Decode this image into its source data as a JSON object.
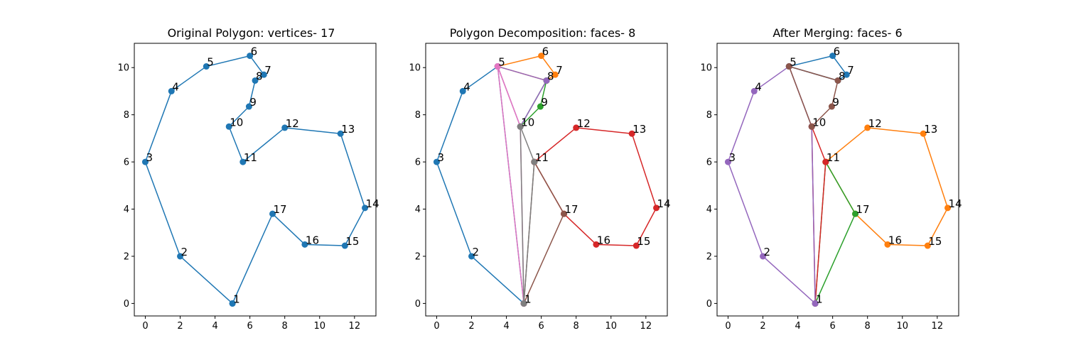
{
  "chart_data": [
    {
      "type": "line",
      "title": "Original Polygon: vertices- 17",
      "xlim": [
        -0.63,
        13.23
      ],
      "ylim": [
        -0.53,
        11.03
      ],
      "xticks": [
        0,
        2,
        4,
        6,
        8,
        10,
        12
      ],
      "yticks": [
        0,
        2,
        4,
        6,
        8,
        10
      ],
      "vertices": [
        {
          "label": "1",
          "x": 5.0,
          "y": 0.0
        },
        {
          "label": "2",
          "x": 2.0,
          "y": 2.0
        },
        {
          "label": "3",
          "x": 0.0,
          "y": 6.0
        },
        {
          "label": "4",
          "x": 1.5,
          "y": 9.0
        },
        {
          "label": "5",
          "x": 3.5,
          "y": 10.05
        },
        {
          "label": "6",
          "x": 6.0,
          "y": 10.5
        },
        {
          "label": "7",
          "x": 6.8,
          "y": 9.7
        },
        {
          "label": "8",
          "x": 6.3,
          "y": 9.45
        },
        {
          "label": "9",
          "x": 5.95,
          "y": 8.35
        },
        {
          "label": "10",
          "x": 4.8,
          "y": 7.5
        },
        {
          "label": "11",
          "x": 5.6,
          "y": 6.0
        },
        {
          "label": "12",
          "x": 8.0,
          "y": 7.45
        },
        {
          "label": "13",
          "x": 11.2,
          "y": 7.2
        },
        {
          "label": "14",
          "x": 12.6,
          "y": 4.05
        },
        {
          "label": "15",
          "x": 11.45,
          "y": 2.45
        },
        {
          "label": "16",
          "x": 9.15,
          "y": 2.5
        },
        {
          "label": "17",
          "x": 7.3,
          "y": 3.8
        }
      ],
      "series": [
        {
          "color": "#1f77b4",
          "points": [
            [
              5.0,
              0.0
            ],
            [
              2.0,
              2.0
            ],
            [
              0.0,
              6.0
            ],
            [
              1.5,
              9.0
            ],
            [
              3.5,
              10.05
            ],
            [
              6.0,
              10.5
            ],
            [
              6.8,
              9.7
            ],
            [
              6.3,
              9.45
            ],
            [
              5.95,
              8.35
            ],
            [
              4.8,
              7.5
            ],
            [
              5.6,
              6.0
            ],
            [
              8.0,
              7.45
            ],
            [
              11.2,
              7.2
            ],
            [
              12.6,
              4.05
            ],
            [
              11.45,
              2.45
            ],
            [
              9.15,
              2.5
            ],
            [
              7.3,
              3.8
            ],
            [
              5.0,
              0.0
            ]
          ]
        }
      ]
    },
    {
      "type": "line",
      "title": "Polygon Decomposition: faces- 8",
      "xlim": [
        -0.63,
        13.23
      ],
      "ylim": [
        -0.53,
        11.03
      ],
      "xticks": [
        0,
        2,
        4,
        6,
        8,
        10,
        12
      ],
      "yticks": [
        0,
        2,
        4,
        6,
        8,
        10
      ],
      "vertices": [
        {
          "label": "1",
          "x": 5.0,
          "y": 0.0
        },
        {
          "label": "2",
          "x": 2.0,
          "y": 2.0
        },
        {
          "label": "3",
          "x": 0.0,
          "y": 6.0
        },
        {
          "label": "4",
          "x": 1.5,
          "y": 9.0
        },
        {
          "label": "5",
          "x": 3.5,
          "y": 10.05
        },
        {
          "label": "6",
          "x": 6.0,
          "y": 10.5
        },
        {
          "label": "7",
          "x": 6.8,
          "y": 9.7
        },
        {
          "label": "8",
          "x": 6.3,
          "y": 9.45
        },
        {
          "label": "9",
          "x": 5.95,
          "y": 8.35
        },
        {
          "label": "10",
          "x": 4.8,
          "y": 7.5
        },
        {
          "label": "11",
          "x": 5.6,
          "y": 6.0
        },
        {
          "label": "12",
          "x": 8.0,
          "y": 7.45
        },
        {
          "label": "13",
          "x": 11.2,
          "y": 7.2
        },
        {
          "label": "14",
          "x": 12.6,
          "y": 4.05
        },
        {
          "label": "15",
          "x": 11.45,
          "y": 2.45
        },
        {
          "label": "16",
          "x": 9.15,
          "y": 2.5
        },
        {
          "label": "17",
          "x": 7.3,
          "y": 3.8
        }
      ],
      "series": [
        {
          "color": "#1f77b4",
          "points": [
            [
              5.0,
              0.0
            ],
            [
              2.0,
              2.0
            ],
            [
              0.0,
              6.0
            ],
            [
              1.5,
              9.0
            ],
            [
              3.5,
              10.05
            ],
            [
              5.0,
              0.0
            ]
          ]
        },
        {
          "color": "#ff7f0e",
          "points": [
            [
              3.5,
              10.05
            ],
            [
              6.0,
              10.5
            ],
            [
              6.8,
              9.7
            ],
            [
              6.3,
              9.45
            ],
            [
              3.5,
              10.05
            ]
          ]
        },
        {
          "color": "#2ca02c",
          "points": [
            [
              6.3,
              9.45
            ],
            [
              5.95,
              8.35
            ],
            [
              4.8,
              7.5
            ],
            [
              6.3,
              9.45
            ]
          ]
        },
        {
          "color": "#d62728",
          "points": [
            [
              5.6,
              6.0
            ],
            [
              8.0,
              7.45
            ],
            [
              11.2,
              7.2
            ],
            [
              12.6,
              4.05
            ],
            [
              11.45,
              2.45
            ],
            [
              9.15,
              2.5
            ],
            [
              7.3,
              3.8
            ],
            [
              5.6,
              6.0
            ]
          ]
        },
        {
          "color": "#9467bd",
          "points": [
            [
              3.5,
              10.05
            ],
            [
              6.3,
              9.45
            ],
            [
              4.8,
              7.5
            ],
            [
              3.5,
              10.05
            ]
          ]
        },
        {
          "color": "#8c564b",
          "points": [
            [
              5.0,
              0.0
            ],
            [
              5.6,
              6.0
            ],
            [
              7.3,
              3.8
            ],
            [
              5.0,
              0.0
            ]
          ]
        },
        {
          "color": "#e377c2",
          "points": [
            [
              3.5,
              10.05
            ],
            [
              4.8,
              7.5
            ],
            [
              5.0,
              0.0
            ],
            [
              3.5,
              10.05
            ]
          ]
        },
        {
          "color": "#7f7f7f",
          "points": [
            [
              4.8,
              7.5
            ],
            [
              5.6,
              6.0
            ],
            [
              5.0,
              0.0
            ],
            [
              4.8,
              7.5
            ]
          ]
        }
      ]
    },
    {
      "type": "line",
      "title": "After Merging: faces- 6",
      "xlim": [
        -0.63,
        13.23
      ],
      "ylim": [
        -0.53,
        11.03
      ],
      "xticks": [
        0,
        2,
        4,
        6,
        8,
        10,
        12
      ],
      "yticks": [
        0,
        2,
        4,
        6,
        8,
        10
      ],
      "vertices": [
        {
          "label": "1",
          "x": 5.0,
          "y": 0.0
        },
        {
          "label": "2",
          "x": 2.0,
          "y": 2.0
        },
        {
          "label": "3",
          "x": 0.0,
          "y": 6.0
        },
        {
          "label": "4",
          "x": 1.5,
          "y": 9.0
        },
        {
          "label": "5",
          "x": 3.5,
          "y": 10.05
        },
        {
          "label": "6",
          "x": 6.0,
          "y": 10.5
        },
        {
          "label": "7",
          "x": 6.8,
          "y": 9.7
        },
        {
          "label": "8",
          "x": 6.3,
          "y": 9.45
        },
        {
          "label": "9",
          "x": 5.95,
          "y": 8.35
        },
        {
          "label": "10",
          "x": 4.8,
          "y": 7.5
        },
        {
          "label": "11",
          "x": 5.6,
          "y": 6.0
        },
        {
          "label": "12",
          "x": 8.0,
          "y": 7.45
        },
        {
          "label": "13",
          "x": 11.2,
          "y": 7.2
        },
        {
          "label": "14",
          "x": 12.6,
          "y": 4.05
        },
        {
          "label": "15",
          "x": 11.45,
          "y": 2.45
        },
        {
          "label": "16",
          "x": 9.15,
          "y": 2.5
        },
        {
          "label": "17",
          "x": 7.3,
          "y": 3.8
        }
      ],
      "series": [
        {
          "color": "#1f77b4",
          "points": [
            [
              3.5,
              10.05
            ],
            [
              6.0,
              10.5
            ],
            [
              6.8,
              9.7
            ],
            [
              6.3,
              9.45
            ],
            [
              3.5,
              10.05
            ]
          ]
        },
        {
          "color": "#ff7f0e",
          "points": [
            [
              5.6,
              6.0
            ],
            [
              8.0,
              7.45
            ],
            [
              11.2,
              7.2
            ],
            [
              12.6,
              4.05
            ],
            [
              11.45,
              2.45
            ],
            [
              9.15,
              2.5
            ],
            [
              7.3,
              3.8
            ],
            [
              5.6,
              6.0
            ]
          ]
        },
        {
          "color": "#2ca02c",
          "points": [
            [
              5.0,
              0.0
            ],
            [
              5.6,
              6.0
            ],
            [
              7.3,
              3.8
            ],
            [
              5.0,
              0.0
            ]
          ]
        },
        {
          "color": "#d62728",
          "points": [
            [
              4.8,
              7.5
            ],
            [
              5.6,
              6.0
            ],
            [
              5.0,
              0.0
            ],
            [
              4.8,
              7.5
            ]
          ]
        },
        {
          "color": "#9467bd",
          "points": [
            [
              5.0,
              0.0
            ],
            [
              2.0,
              2.0
            ],
            [
              0.0,
              6.0
            ],
            [
              1.5,
              9.0
            ],
            [
              3.5,
              10.05
            ],
            [
              4.8,
              7.5
            ],
            [
              5.0,
              0.0
            ]
          ]
        },
        {
          "color": "#8c564b",
          "points": [
            [
              3.5,
              10.05
            ],
            [
              6.3,
              9.45
            ],
            [
              5.95,
              8.35
            ],
            [
              4.8,
              7.5
            ],
            [
              3.5,
              10.05
            ]
          ]
        }
      ]
    }
  ]
}
